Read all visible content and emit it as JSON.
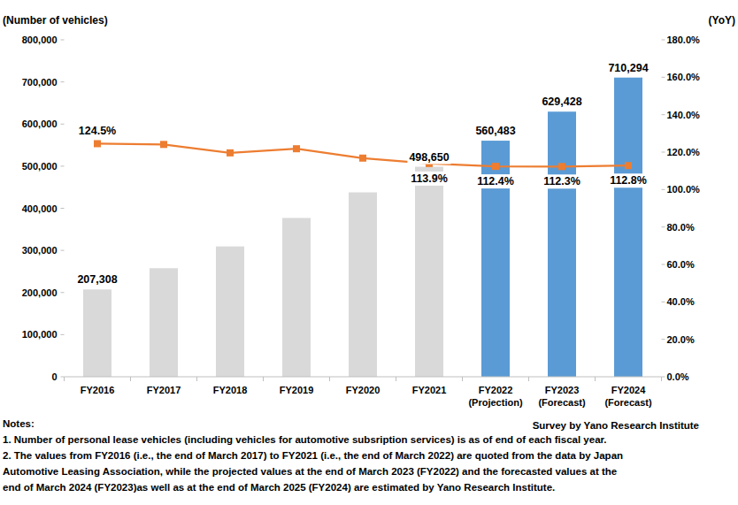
{
  "chart_data": {
    "type": "bar",
    "ylabel": "(Number of vehicles)",
    "y2label": "(YoY)",
    "source": "Survey by Yano Research Institute",
    "notes": [
      "Notes:",
      "1. Number of personal lease vehicles (including vehicles for automotive subsription services) is as of end of each fiscal year.",
      "2. The values from FY2016 (i.e., the end of March 2017) to FY2021 (i.e., the end of March 2022) are quoted from the data by Japan",
      "Automotive Leasing Association, while the projected values at the end of March 2023 (FY2022) and the forecasted values at the",
      "end of March 2024 (FY2023)as well as at the end of March 2025 (FY2024) are estimated by Yano Research Institute."
    ],
    "categories": [
      "FY2016",
      "FY2017",
      "FY2018",
      "FY2019",
      "FY2020",
      "FY2021",
      "FY2022 (Projection)",
      "FY2023 (Forecast)",
      "FY2024 (Forecast)"
    ],
    "series": [
      {
        "type": "bar",
        "colors": [
          "#d9d9d9",
          "#d9d9d9",
          "#d9d9d9",
          "#d9d9d9",
          "#d9d9d9",
          "#d9d9d9",
          "#5b9bd5",
          "#5b9bd5",
          "#5b9bd5"
        ],
        "values": [
          207308,
          257700,
          309500,
          377000,
          437800,
          498650,
          560483,
          629428,
          710294
        ],
        "value_labels": [
          "207,308",
          null,
          null,
          null,
          null,
          "498,650",
          "560,483",
          "629,428",
          "710,294"
        ]
      },
      {
        "type": "line",
        "axis": "y2",
        "color": "#ed7d31",
        "marker": "square",
        "values": [
          124.5,
          124.1,
          119.6,
          121.8,
          116.8,
          113.9,
          112.4,
          112.3,
          112.8
        ],
        "value_labels": [
          "124.5%",
          null,
          null,
          null,
          null,
          "113.9%",
          "112.4%",
          "112.3%",
          "112.8%"
        ]
      }
    ],
    "ylim": [
      0,
      800000
    ],
    "yticks": [
      0,
      {
        "value": 100000,
        "label": "100,000"
      },
      {
        "value": 200000,
        "label": "200,000"
      },
      {
        "value": 300000,
        "label": "300,000"
      },
      {
        "value": 400000,
        "label": "400,000"
      },
      {
        "value": 500000,
        "label": "500,000"
      },
      {
        "value": 600000,
        "label": "600,000"
      },
      {
        "value": 700000,
        "label": "700,000"
      },
      {
        "value": 800000,
        "label": "800,000"
      }
    ],
    "y2lim": [
      0,
      180
    ],
    "y2ticks": [
      {
        "value": 0,
        "label": "0.0%"
      },
      {
        "value": 20,
        "label": "20.0%"
      },
      {
        "value": 40,
        "label": "40.0%"
      },
      {
        "value": 60,
        "label": "60.0%"
      },
      {
        "value": 80,
        "label": "80.0%"
      },
      {
        "value": 100,
        "label": "100.0%"
      },
      {
        "value": 120,
        "label": "120.0%"
      },
      {
        "value": 140,
        "label": "140.0%"
      },
      {
        "value": 160,
        "label": "160.0%"
      },
      {
        "value": 180,
        "label": "180.0%"
      }
    ],
    "grid": false,
    "data_labels": true
  }
}
